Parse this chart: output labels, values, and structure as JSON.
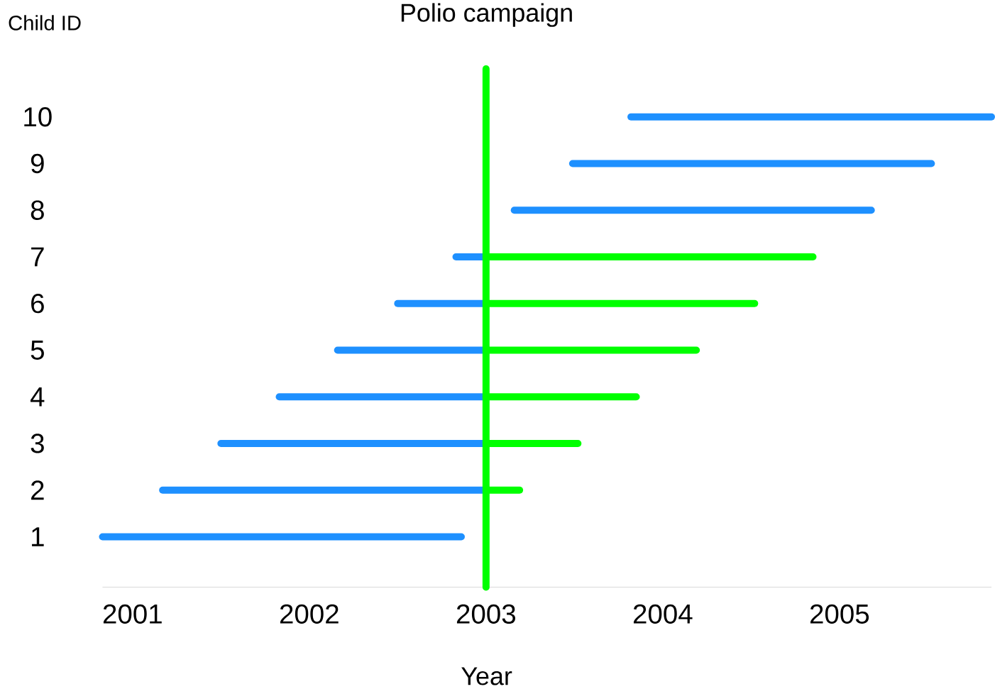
{
  "chart_data": {
    "type": "line",
    "title": "Polio campaign",
    "xlabel": "Year",
    "ylabel": "Child ID",
    "series": [
      {
        "color": "#1e90ff",
        "x": [
          2000.83,
          2002.86
        ],
        "values": [
          1,
          1
        ]
      },
      {
        "color": "#1e90ff",
        "x": [
          2001.17,
          2003
        ],
        "values": [
          2,
          2
        ]
      },
      {
        "color": "#00ff00",
        "x": [
          2003,
          2003.19
        ],
        "values": [
          2,
          2
        ]
      },
      {
        "color": "#1e90ff",
        "x": [
          2001.5,
          2003
        ],
        "values": [
          3,
          3
        ]
      },
      {
        "color": "#00ff00",
        "x": [
          2003,
          2003.52
        ],
        "values": [
          3,
          3
        ]
      },
      {
        "color": "#1e90ff",
        "x": [
          2001.83,
          2003
        ],
        "values": [
          4,
          4
        ]
      },
      {
        "color": "#00ff00",
        "x": [
          2003,
          2003.85
        ],
        "values": [
          4,
          4
        ]
      },
      {
        "color": "#1e90ff",
        "x": [
          2002.16,
          2003
        ],
        "values": [
          5,
          5
        ]
      },
      {
        "color": "#00ff00",
        "x": [
          2003,
          2004.19
        ],
        "values": [
          5,
          5
        ]
      },
      {
        "color": "#1e90ff",
        "x": [
          2002.5,
          2003
        ],
        "values": [
          6,
          6
        ]
      },
      {
        "color": "#00ff00",
        "x": [
          2003,
          2004.52
        ],
        "values": [
          6,
          6
        ]
      },
      {
        "color": "#1e90ff",
        "x": [
          2002.83,
          2003
        ],
        "values": [
          7,
          7
        ]
      },
      {
        "color": "#00ff00",
        "x": [
          2003,
          2004.85
        ],
        "values": [
          7,
          7
        ]
      },
      {
        "color": "#1e90ff",
        "x": [
          2003.16,
          2005.18
        ],
        "values": [
          8,
          8
        ]
      },
      {
        "color": "#1e90ff",
        "x": [
          2003.49,
          2005.52
        ],
        "values": [
          9,
          9
        ]
      },
      {
        "color": "#1e90ff",
        "x": [
          2003.82,
          2005.86
        ],
        "values": [
          10,
          10
        ]
      }
    ],
    "xlim": [
      2000.83,
      2005.86
    ],
    "xticks": [
      2001,
      2002,
      2003,
      2004,
      2005
    ],
    "ylim": [
      -0.08,
      11.03
    ],
    "yticks": [
      1,
      2,
      3,
      4,
      5,
      6,
      7,
      8,
      9,
      10
    ],
    "ref_lines": [
      {
        "axis": "x",
        "value": 2003,
        "color": "#00ff00"
      }
    ]
  }
}
